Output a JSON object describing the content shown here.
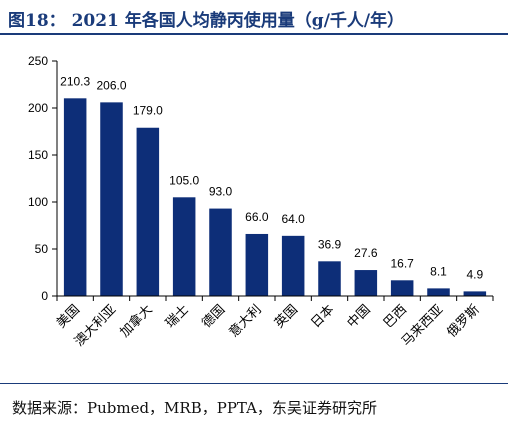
{
  "title": "图18：  2021 年各国人均静丙使用量（g/千人/年）",
  "source": "数据来源：Pubmed，MRB，PPTA，东吴证券研究所",
  "colors": {
    "bar": "#0d2e78",
    "title": "#1a3b7a"
  },
  "chart_data": {
    "type": "bar",
    "title": "2021 年各国人均静丙使用量（g/千人/年）",
    "xlabel": "",
    "ylabel": "",
    "categories": [
      "美国",
      "澳大利亚",
      "加拿大",
      "瑞士",
      "德国",
      "意大利",
      "英国",
      "日本",
      "中国",
      "巴西",
      "马来西亚",
      "俄罗斯"
    ],
    "series": [
      {
        "values": [
          210.3,
          206.0,
          179.0,
          105.0,
          93.0,
          66.0,
          64.0,
          36.9,
          27.6,
          16.7,
          8.1,
          4.9
        ],
        "labels": [
          "210.3",
          "206.0",
          "179.0",
          "105.0",
          "93.0",
          "66.0",
          "64.0",
          "36.9",
          "27.6",
          "16.7",
          "8.1",
          "4.9"
        ]
      }
    ],
    "ylim": [
      0,
      250
    ],
    "yticks": [
      "0",
      "50",
      "100",
      "150",
      "200",
      "250"
    ],
    "grid": false,
    "legend": "none"
  }
}
